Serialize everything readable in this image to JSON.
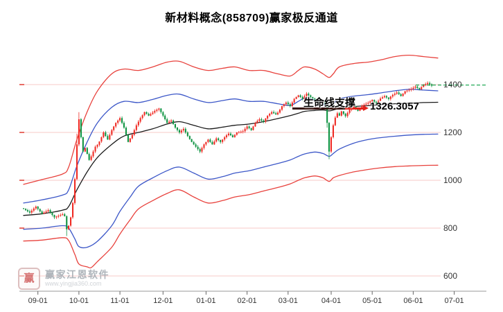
{
  "title": "新材料概念(858709)赢家极反通道",
  "watermark": {
    "logo_char": "赢",
    "brand": "赢家江恩软件",
    "url": "www.yingjia360.com"
  },
  "chart_data": {
    "type": "candlestick",
    "title": "新材料概念(858709)赢家极反通道",
    "xlabel": "",
    "ylabel": "",
    "ylim": [
      545,
      1530
    ],
    "y_ticks": [
      1400,
      1200,
      1000,
      800,
      600
    ],
    "grid": true,
    "grid_color": "#f7c9c7",
    "axis_color": "#9a9a9a",
    "tick_color": "#e03a30",
    "x_tick_labels": [
      "09-01",
      "10-01",
      "11-01",
      "12-01",
      "01-01",
      "02-01",
      "03-01",
      "04-01",
      "05-01",
      "06-01",
      "07-01"
    ],
    "x_tick_indices": [
      7,
      27,
      47,
      68,
      89,
      109,
      129,
      150,
      170,
      190,
      210
    ],
    "annotation": {
      "label": "生命线支撑",
      "value_text": "1326.3057",
      "value": 1326.3057
    },
    "current_price_line": {
      "price": 1398,
      "color": "#0aa043",
      "style": "dashed"
    },
    "candles": {
      "up_color": "#ef2b24",
      "down_color": "#0f9342",
      "closes": [
        880,
        875,
        870,
        865,
        873,
        882,
        890,
        880,
        870,
        860,
        865,
        870,
        875,
        865,
        855,
        845,
        848,
        852,
        855,
        858,
        850,
        795,
        810,
        845,
        905,
        1005,
        1150,
        1255,
        1180,
        1120,
        1135,
        1110,
        1085,
        1100,
        1120,
        1140,
        1148,
        1162,
        1180,
        1200,
        1185,
        1170,
        1190,
        1210,
        1225,
        1240,
        1250,
        1260,
        1240,
        1220,
        1190,
        1160,
        1175,
        1190,
        1210,
        1230,
        1245,
        1260,
        1272,
        1285,
        1278,
        1270,
        1277,
        1283,
        1290,
        1295,
        1300,
        1285,
        1270,
        1255,
        1240,
        1245,
        1250,
        1235,
        1220,
        1210,
        1200,
        1208,
        1215,
        1200,
        1185,
        1172,
        1160,
        1150,
        1140,
        1130,
        1120,
        1135,
        1150,
        1160,
        1170,
        1160,
        1150,
        1162,
        1175,
        1168,
        1160,
        1170,
        1180,
        1188,
        1195,
        1188,
        1180,
        1190,
        1200,
        1202,
        1203,
        1205,
        1215,
        1225,
        1218,
        1210,
        1225,
        1240,
        1248,
        1255,
        1250,
        1245,
        1258,
        1270,
        1278,
        1285,
        1280,
        1275,
        1283,
        1295,
        1310,
        1318,
        1325,
        1318,
        1310,
        1325,
        1340,
        1348,
        1355,
        1348,
        1340,
        1352,
        1362,
        1355,
        1348,
        1342,
        1336,
        1328,
        1320,
        1325,
        1330,
        1318,
        1240,
        1120,
        1180,
        1230,
        1262,
        1280,
        1270,
        1288,
        1278,
        1268,
        1282,
        1295,
        1302,
        1308,
        1298,
        1290,
        1300,
        1312,
        1316,
        1320,
        1324,
        1330,
        1336,
        1328,
        1320,
        1332,
        1342,
        1347,
        1352,
        1346,
        1340,
        1350,
        1357,
        1362,
        1367,
        1360,
        1352,
        1362,
        1372,
        1375,
        1378,
        1382,
        1387,
        1392,
        1386,
        1380,
        1390,
        1397,
        1402,
        1407,
        1401,
        1396
      ],
      "wick_overrides": {
        "21": [
          3,
          28
        ],
        "26": [
          45,
          5
        ],
        "27": [
          30,
          8
        ],
        "148": [
          2,
          20
        ],
        "149": [
          3,
          32
        ]
      }
    },
    "channels": [
      {
        "name": "upper-red",
        "color": "#e8413c",
        "width": 1.3,
        "points": [
          [
            0,
            983
          ],
          [
            9,
            1003
          ],
          [
            19,
            1026
          ],
          [
            22,
            1055
          ],
          [
            26,
            1170
          ],
          [
            31,
            1286
          ],
          [
            36,
            1373
          ],
          [
            43,
            1445
          ],
          [
            49,
            1465
          ],
          [
            56,
            1459
          ],
          [
            63,
            1474
          ],
          [
            70,
            1494
          ],
          [
            76,
            1497
          ],
          [
            83,
            1474
          ],
          [
            90,
            1459
          ],
          [
            97,
            1468
          ],
          [
            103,
            1474
          ],
          [
            110,
            1459
          ],
          [
            117,
            1459
          ],
          [
            124,
            1445
          ],
          [
            130,
            1436
          ],
          [
            134,
            1459
          ],
          [
            137,
            1474
          ],
          [
            142,
            1465
          ],
          [
            146,
            1445
          ],
          [
            149,
            1430
          ],
          [
            151,
            1445
          ],
          [
            154,
            1474
          ],
          [
            161,
            1488
          ],
          [
            168,
            1494
          ],
          [
            174,
            1503
          ],
          [
            181,
            1517
          ],
          [
            188,
            1523
          ],
          [
            195,
            1517
          ],
          [
            202,
            1511
          ]
        ]
      },
      {
        "name": "upper-blue",
        "color": "#3c57c8",
        "width": 1.3,
        "points": [
          [
            0,
            905
          ],
          [
            9,
            918
          ],
          [
            19,
            938
          ],
          [
            22,
            960
          ],
          [
            26,
            1060
          ],
          [
            31,
            1160
          ],
          [
            36,
            1240
          ],
          [
            43,
            1305
          ],
          [
            49,
            1330
          ],
          [
            56,
            1325
          ],
          [
            63,
            1338
          ],
          [
            70,
            1355
          ],
          [
            76,
            1360
          ],
          [
            83,
            1340
          ],
          [
            90,
            1325
          ],
          [
            97,
            1333
          ],
          [
            103,
            1340
          ],
          [
            110,
            1330
          ],
          [
            117,
            1330
          ],
          [
            124,
            1320
          ],
          [
            130,
            1313
          ],
          [
            134,
            1330
          ],
          [
            137,
            1342
          ],
          [
            142,
            1335
          ],
          [
            146,
            1320
          ],
          [
            149,
            1308
          ],
          [
            151,
            1320
          ],
          [
            154,
            1340
          ],
          [
            161,
            1352
          ],
          [
            168,
            1358
          ],
          [
            174,
            1365
          ],
          [
            181,
            1374
          ],
          [
            188,
            1380
          ],
          [
            195,
            1377
          ],
          [
            202,
            1374
          ]
        ]
      },
      {
        "name": "lifeline",
        "color": "#1a1a1a",
        "width": 1.3,
        "points": [
          [
            0,
            853
          ],
          [
            9,
            860
          ],
          [
            19,
            875
          ],
          [
            22,
            890
          ],
          [
            26,
            960
          ],
          [
            31,
            1035
          ],
          [
            36,
            1095
          ],
          [
            43,
            1150
          ],
          [
            49,
            1185
          ],
          [
            56,
            1200
          ],
          [
            63,
            1215
          ],
          [
            70,
            1235
          ],
          [
            76,
            1245
          ],
          [
            83,
            1230
          ],
          [
            90,
            1215
          ],
          [
            97,
            1222
          ],
          [
            103,
            1230
          ],
          [
            110,
            1235
          ],
          [
            117,
            1245
          ],
          [
            124,
            1258
          ],
          [
            130,
            1270
          ],
          [
            134,
            1280
          ],
          [
            137,
            1288
          ],
          [
            142,
            1292
          ],
          [
            146,
            1294
          ],
          [
            149,
            1290
          ],
          [
            151,
            1294
          ],
          [
            154,
            1300
          ],
          [
            161,
            1308
          ],
          [
            168,
            1312
          ],
          [
            174,
            1316
          ],
          [
            181,
            1320
          ],
          [
            188,
            1322
          ],
          [
            195,
            1325
          ],
          [
            202,
            1326
          ]
        ]
      },
      {
        "name": "lower-blue",
        "color": "#3c57c8",
        "width": 1.3,
        "points": [
          [
            0,
            795
          ],
          [
            9,
            800
          ],
          [
            19,
            810
          ],
          [
            22,
            800
          ],
          [
            25,
            755
          ],
          [
            27,
            723
          ],
          [
            31,
            720
          ],
          [
            36,
            745
          ],
          [
            43,
            810
          ],
          [
            47,
            870
          ],
          [
            52,
            930
          ],
          [
            56,
            975
          ],
          [
            63,
            1010
          ],
          [
            70,
            1040
          ],
          [
            76,
            1055
          ],
          [
            83,
            1030
          ],
          [
            90,
            1005
          ],
          [
            97,
            1015
          ],
          [
            103,
            1030
          ],
          [
            110,
            1040
          ],
          [
            117,
            1055
          ],
          [
            124,
            1070
          ],
          [
            130,
            1085
          ],
          [
            134,
            1100
          ],
          [
            137,
            1110
          ],
          [
            142,
            1118
          ],
          [
            146,
            1112
          ],
          [
            149,
            1100
          ],
          [
            151,
            1112
          ],
          [
            154,
            1130
          ],
          [
            161,
            1155
          ],
          [
            168,
            1170
          ],
          [
            174,
            1178
          ],
          [
            181,
            1184
          ],
          [
            188,
            1189
          ],
          [
            195,
            1192
          ],
          [
            202,
            1193
          ]
        ]
      },
      {
        "name": "lower-red",
        "color": "#e8413c",
        "width": 1.3,
        "points": [
          [
            0,
            746
          ],
          [
            9,
            750
          ],
          [
            19,
            760
          ],
          [
            22,
            748
          ],
          [
            25,
            690
          ],
          [
            27,
            650
          ],
          [
            31,
            638
          ],
          [
            33,
            635
          ],
          [
            36,
            660
          ],
          [
            43,
            720
          ],
          [
            47,
            775
          ],
          [
            52,
            835
          ],
          [
            56,
            880
          ],
          [
            63,
            915
          ],
          [
            70,
            945
          ],
          [
            76,
            960
          ],
          [
            83,
            930
          ],
          [
            90,
            905
          ],
          [
            97,
            915
          ],
          [
            103,
            930
          ],
          [
            110,
            940
          ],
          [
            117,
            955
          ],
          [
            124,
            970
          ],
          [
            130,
            985
          ],
          [
            134,
            1000
          ],
          [
            137,
            1010
          ],
          [
            142,
            1018
          ],
          [
            146,
            1010
          ],
          [
            149,
            995
          ],
          [
            151,
            1010
          ],
          [
            154,
            1020
          ],
          [
            161,
            1035
          ],
          [
            168,
            1045
          ],
          [
            174,
            1052
          ],
          [
            181,
            1057
          ],
          [
            188,
            1060
          ],
          [
            195,
            1062
          ],
          [
            202,
            1063
          ]
        ]
      }
    ]
  }
}
